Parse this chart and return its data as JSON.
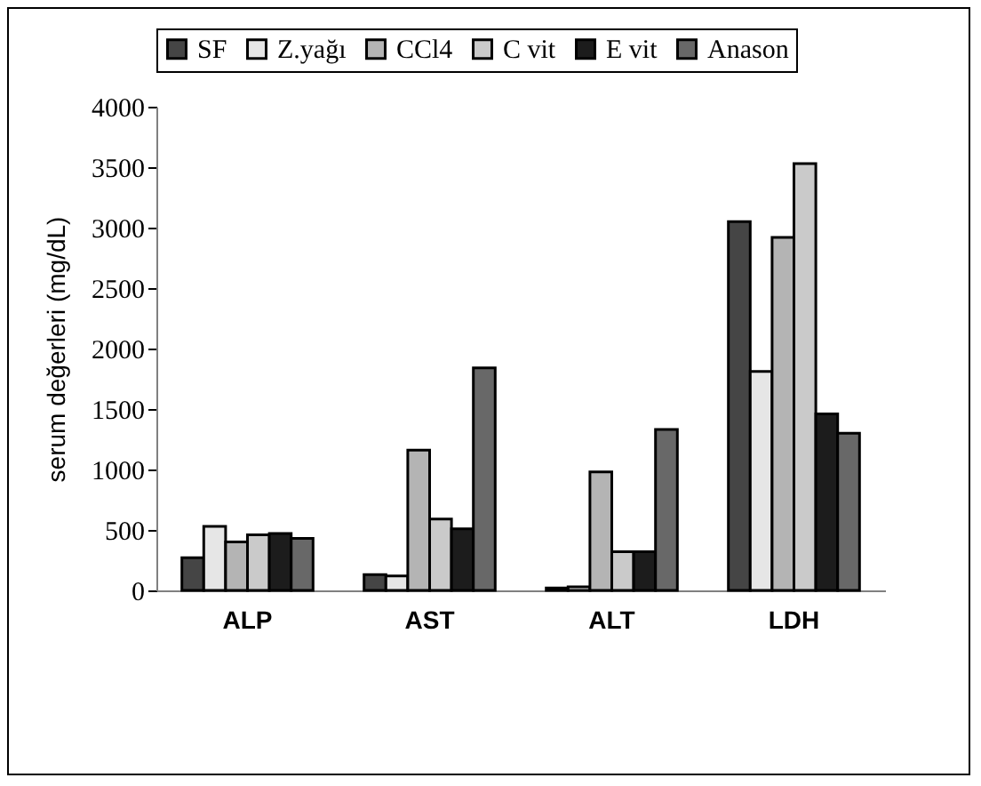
{
  "chart_data": {
    "type": "bar",
    "ylabel": "serum değerleri (mg/dL)",
    "categories": [
      "ALP",
      "AST",
      "ALT",
      "LDH"
    ],
    "series": [
      {
        "name": "SF",
        "color": "#454545",
        "values": [
          270,
          130,
          20,
          3050
        ]
      },
      {
        "name": "Z.yağı",
        "color": "#e6e6e6",
        "values": [
          530,
          120,
          30,
          1810
        ]
      },
      {
        "name": "CCl4",
        "color": "#b4b4b4",
        "values": [
          400,
          1160,
          980,
          2920
        ]
      },
      {
        "name": "C vit",
        "color": "#cacaca",
        "values": [
          460,
          590,
          320,
          3530
        ]
      },
      {
        "name": "E vit",
        "color": "#1c1c1c",
        "values": [
          470,
          510,
          320,
          1460
        ]
      },
      {
        "name": "Anason",
        "color": "#686868",
        "values": [
          430,
          1840,
          1330,
          1300
        ]
      }
    ],
    "ylim": [
      0,
      4000
    ],
    "yticks": [
      0,
      500,
      1000,
      1500,
      2000,
      2500,
      3000,
      3500,
      4000
    ],
    "grid": false,
    "legend": "top"
  }
}
